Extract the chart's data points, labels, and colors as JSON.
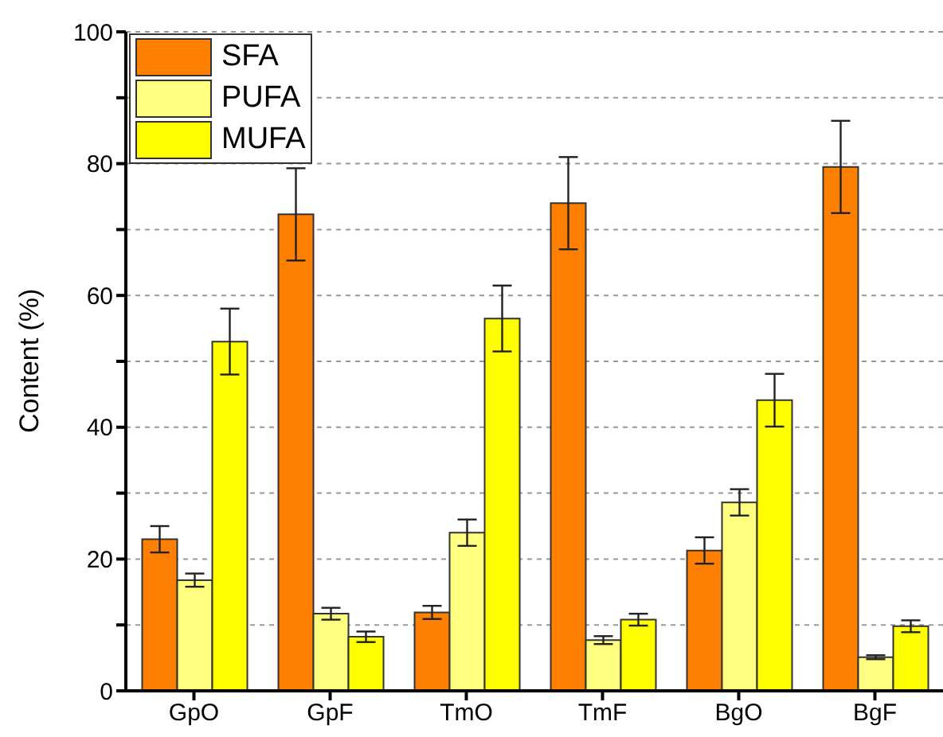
{
  "chart_data": {
    "type": "bar",
    "ylabel": "Content (%)",
    "categories": [
      "GpO",
      "GpF",
      "TmO",
      "TmF",
      "BgO",
      "BgF"
    ],
    "series": [
      {
        "name": "SFA",
        "color": "#ff8000",
        "values": [
          23,
          72.3,
          11.9,
          74,
          21.3,
          79.5
        ],
        "errors": [
          2,
          7,
          1,
          7,
          2,
          7
        ]
      },
      {
        "name": "PUFA",
        "color": "#ffff80",
        "values": [
          16.8,
          11.7,
          24,
          7.7,
          28.6,
          5.1
        ],
        "errors": [
          1,
          0.9,
          2,
          0.6,
          2,
          0.3
        ]
      },
      {
        "name": "MUFA",
        "color": "#ffff00",
        "values": [
          53,
          8.2,
          56.5,
          10.8,
          44.1,
          9.8
        ],
        "errors": [
          5,
          0.8,
          5,
          0.9,
          4,
          0.9
        ]
      }
    ],
    "ylim": [
      0,
      100
    ],
    "yticks": [
      0,
      {
        "value": 10,
        "label": null
      },
      20,
      {
        "value": 30,
        "label": null
      },
      40,
      {
        "value": 50,
        "label": null
      },
      60,
      {
        "value": 70,
        "label": null
      },
      80,
      {
        "value": 90,
        "label": null
      },
      100
    ],
    "grid": "y",
    "legend": "top left"
  }
}
